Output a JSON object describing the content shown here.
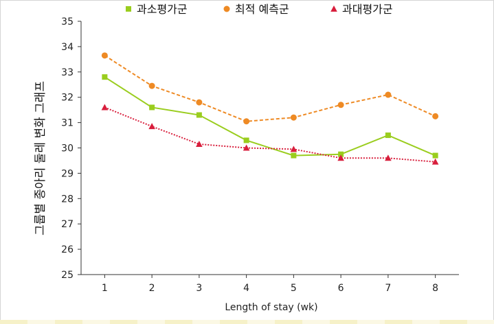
{
  "chart_data": {
    "type": "line",
    "title": "",
    "xlabel": "Length of stay (wk)",
    "ylabel": "그룹별 종아리 둘레 변화 그래프",
    "x": [
      1,
      2,
      3,
      4,
      5,
      6,
      7,
      8
    ],
    "xlim": [
      0.5,
      8.5
    ],
    "ylim": [
      25,
      35
    ],
    "yticks": [
      25,
      26,
      27,
      28,
      29,
      30,
      31,
      32,
      33,
      34,
      35
    ],
    "grid": false,
    "legend_position": "top",
    "series": [
      {
        "name": "과소평가군",
        "values": [
          32.8,
          31.6,
          31.3,
          30.3,
          29.7,
          29.75,
          30.5,
          29.7
        ],
        "color": "#9acd1e",
        "marker": "square",
        "line_style": "solid"
      },
      {
        "name": "최적 예측군",
        "values": [
          33.65,
          32.45,
          31.8,
          31.05,
          31.2,
          31.7,
          32.1,
          31.25
        ],
        "color": "#ee8a24",
        "marker": "circle",
        "line_style": "dashed"
      },
      {
        "name": "과대평가군",
        "values": [
          31.6,
          30.85,
          30.15,
          30.0,
          29.95,
          29.6,
          29.6,
          29.45
        ],
        "color": "#d81e3c",
        "marker": "triangle",
        "line_style": "dotted"
      }
    ]
  }
}
